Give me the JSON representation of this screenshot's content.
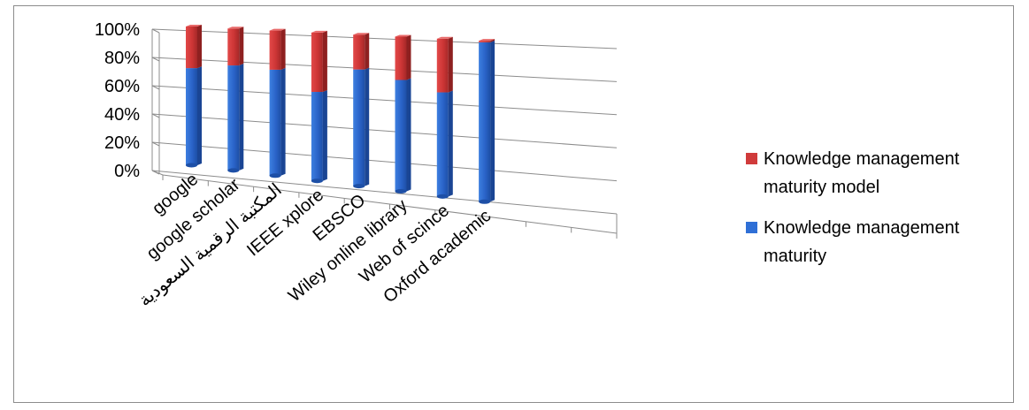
{
  "chart_data": {
    "type": "bar",
    "stacked": true,
    "percent_stacked": true,
    "three_d": true,
    "categories": [
      "google",
      "google scholar",
      "المكتبة الرقمية السعودية",
      "IEEE xplore",
      "EBSCO",
      "Wiley online library",
      "Web of scince",
      "Oxford academic"
    ],
    "series": [
      {
        "name": "Knowledge management maturity",
        "color": "#2f6fd6",
        "values": [
          70,
          74,
          73,
          60,
          77,
          72,
          66,
          99
        ]
      },
      {
        "name": "Knowledge management maturity model",
        "color": "#d03b3b",
        "values": [
          30,
          26,
          27,
          40,
          23,
          28,
          34,
          1
        ]
      }
    ],
    "y_ticks": [
      "0%",
      "20%",
      "40%",
      "60%",
      "80%",
      "100%"
    ],
    "ylim": [
      0,
      100
    ],
    "legend_position": "right",
    "gridlines": true
  }
}
